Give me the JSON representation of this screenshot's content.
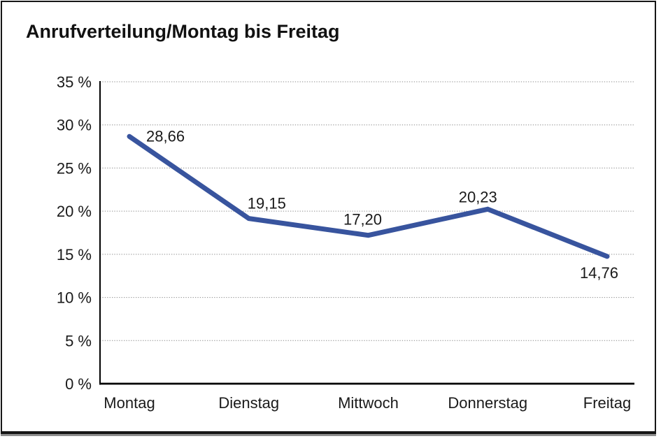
{
  "window": {
    "background": "#ffffff",
    "frame_border_color": "#161616",
    "frame_shadow_color": "#8e8e8e"
  },
  "chart_data": {
    "type": "line",
    "title": "Anrufverteilung/Montag bis Freitag",
    "categories": [
      "Montag",
      "Dienstag",
      "Mittwoch",
      "Donnerstag",
      "Freitag"
    ],
    "series": [
      {
        "name": "Anrufverteilung",
        "values": [
          28.66,
          19.15,
          17.2,
          20.23,
          14.76
        ],
        "color": "#38549E"
      }
    ],
    "point_labels": [
      "28,66",
      "19,15",
      "17,20",
      "20,23",
      "14,76"
    ],
    "xlabel": "",
    "ylabel": "",
    "ylim": [
      0,
      35
    ],
    "y_tick_step": 5,
    "y_tick_labels": [
      "0 %",
      "5 %",
      "10 %",
      "15 %",
      "20 %",
      "25 %",
      "30 %",
      "35 %"
    ],
    "grid": "horizontal-dotted",
    "grid_color": "#8a8a8a",
    "axis_color": "#000000",
    "text_color": "#1a1a1a",
    "legend": "none",
    "unit": "%"
  }
}
